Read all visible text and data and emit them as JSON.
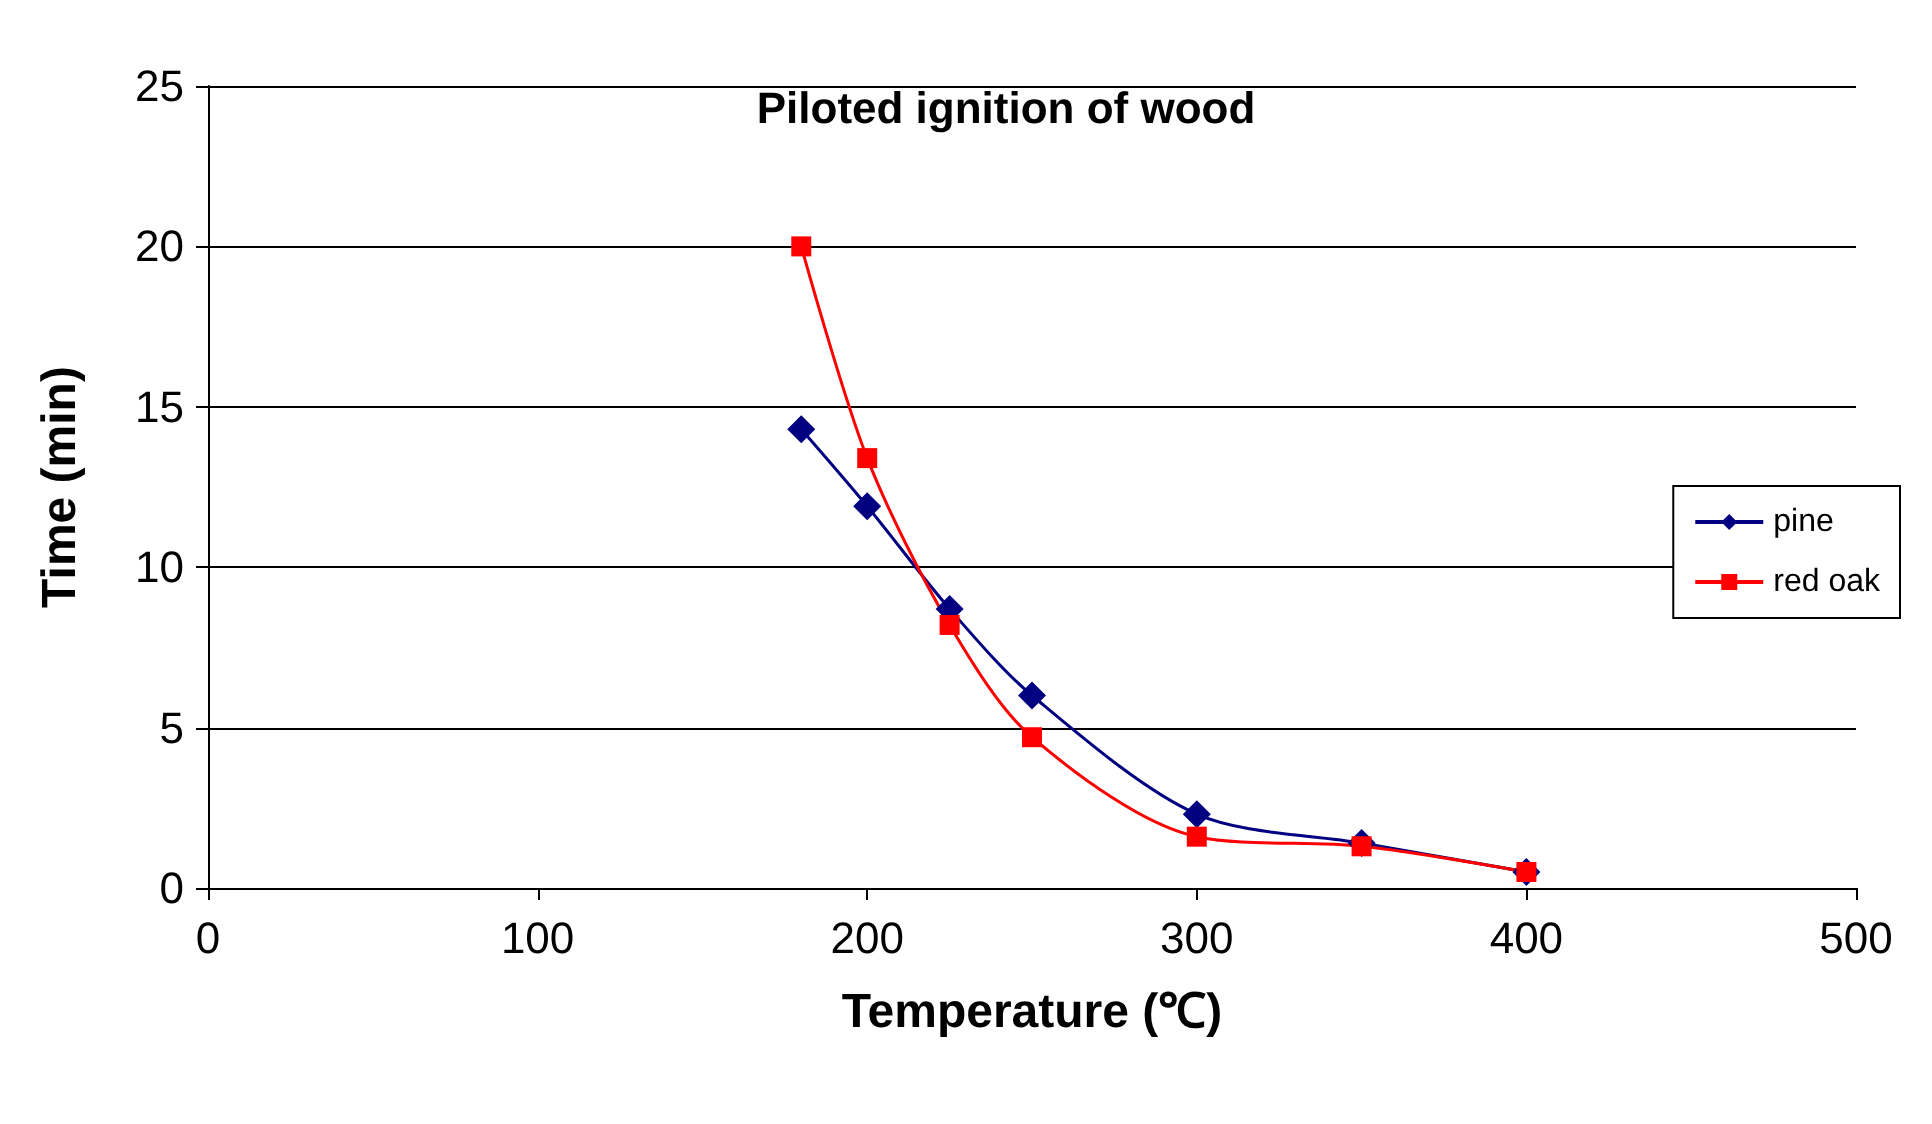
{
  "chart_data": {
    "type": "line",
    "title": "Piloted ignition of wood",
    "xlabel": "Temperature (℃)",
    "ylabel": "Time (min)",
    "x": [
      180,
      200,
      225,
      250,
      300,
      350,
      400
    ],
    "series": [
      {
        "name": "pine",
        "color": "#000080",
        "marker": "diamond",
        "values": [
          14.3,
          11.9,
          8.7,
          6.0,
          2.3,
          1.4,
          0.5
        ]
      },
      {
        "name": "red oak",
        "color": "#ff0000",
        "marker": "square",
        "values": [
          20.0,
          13.4,
          8.2,
          4.7,
          1.6,
          1.3,
          0.5
        ]
      }
    ],
    "xlim": [
      0,
      500
    ],
    "xticks": [
      0,
      100,
      200,
      300,
      400,
      500
    ],
    "ylim": [
      0,
      25
    ],
    "yticks": [
      0,
      5,
      10,
      15,
      20,
      25
    ],
    "grid": "y",
    "legend": "right",
    "line_style": "solid"
  }
}
